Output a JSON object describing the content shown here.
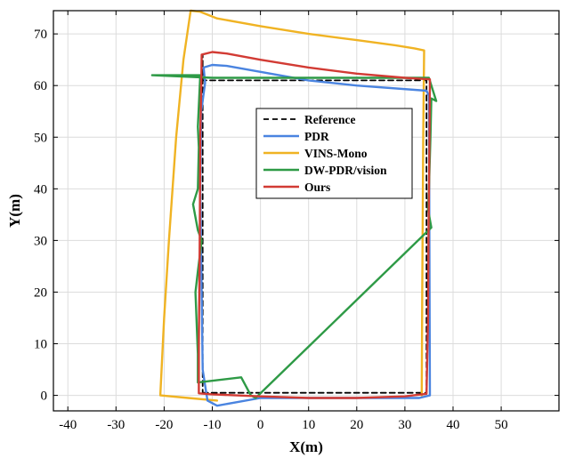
{
  "chart_data": {
    "type": "line",
    "xlabel": "X(m)",
    "ylabel": "Y(m)",
    "xlim": [
      -43,
      62
    ],
    "ylim": [
      -3,
      74.5
    ],
    "xticks": [
      -40,
      -30,
      -20,
      -10,
      0,
      10,
      20,
      30,
      40,
      50
    ],
    "yticks": [
      0,
      10,
      20,
      30,
      40,
      50,
      60,
      70
    ],
    "grid": true,
    "legend_position": "inside-center",
    "series": [
      {
        "name": "Reference",
        "color": "#000000",
        "dash": "dashed",
        "points": [
          [
            -12,
            0.5
          ],
          [
            34.5,
            0.5
          ],
          [
            34.5,
            61
          ],
          [
            -12,
            61
          ],
          [
            -12,
            66
          ],
          [
            -12,
            0.5
          ]
        ]
      },
      {
        "name": "PDR",
        "color": "#4a84e0",
        "dash": "solid",
        "points": [
          [
            -11.5,
            60.5
          ],
          [
            -11.8,
            63.5
          ],
          [
            -10,
            64
          ],
          [
            -7,
            63.8
          ],
          [
            10,
            61
          ],
          [
            20,
            60
          ],
          [
            34.5,
            59
          ],
          [
            35,
            58
          ],
          [
            35.2,
            0
          ],
          [
            33,
            -0.5
          ],
          [
            0,
            -0.5
          ],
          [
            -9,
            -2
          ],
          [
            -11,
            -1
          ],
          [
            -12,
            5
          ],
          [
            -12.5,
            40
          ],
          [
            -12.3,
            55
          ],
          [
            -11.5,
            60.5
          ]
        ]
      },
      {
        "name": "VINS-Mono",
        "color": "#f0b323",
        "dash": "solid",
        "points": [
          [
            -9,
            -1
          ],
          [
            -15,
            -0.5
          ],
          [
            -20.8,
            0
          ],
          [
            -20,
            15
          ],
          [
            -19,
            30
          ],
          [
            -17.5,
            50
          ],
          [
            -16,
            65
          ],
          [
            -14.5,
            74.5
          ],
          [
            -12.5,
            74.3
          ],
          [
            -9,
            73
          ],
          [
            0,
            71.5
          ],
          [
            10,
            70
          ],
          [
            20,
            68.8
          ],
          [
            28,
            67.8
          ],
          [
            32,
            67.2
          ],
          [
            34,
            66.8
          ],
          [
            33.8,
            50
          ],
          [
            33.6,
            20
          ],
          [
            33.5,
            0
          ]
        ]
      },
      {
        "name": "DW-PDR/vision",
        "color": "#2e9a46",
        "dash": "solid",
        "points": [
          [
            -22.5,
            62
          ],
          [
            -10,
            61.5
          ],
          [
            10,
            61.5
          ],
          [
            30,
            61.5
          ],
          [
            35,
            61.5
          ],
          [
            36.5,
            57
          ],
          [
            35.5,
            57.5
          ],
          [
            35.3,
            50
          ],
          [
            35,
            40
          ],
          [
            34.8,
            36
          ],
          [
            35.5,
            32.5
          ],
          [
            -1,
            -0.5
          ],
          [
            -2,
            0
          ],
          [
            -4,
            3.5
          ],
          [
            -13,
            2.5
          ],
          [
            -13,
            8
          ],
          [
            -13.5,
            20
          ],
          [
            -13,
            24
          ],
          [
            -12.2,
            30
          ],
          [
            -13,
            32
          ],
          [
            -14,
            37
          ],
          [
            -13,
            40
          ],
          [
            -12.8,
            48
          ],
          [
            -13,
            52
          ],
          [
            -12.5,
            62
          ],
          [
            -22.5,
            62
          ]
        ]
      },
      {
        "name": "Ours",
        "color": "#d23b34",
        "dash": "solid",
        "points": [
          [
            -12.2,
            66
          ],
          [
            -10,
            66.5
          ],
          [
            -7,
            66.2
          ],
          [
            0,
            65
          ],
          [
            10,
            63.5
          ],
          [
            20,
            62.3
          ],
          [
            30,
            61.5
          ],
          [
            35.2,
            61.2
          ],
          [
            35.1,
            50
          ],
          [
            34.9,
            30
          ],
          [
            34.8,
            15
          ],
          [
            34.5,
            0.3
          ],
          [
            30,
            -0.2
          ],
          [
            20,
            -0.5
          ],
          [
            10,
            -0.5
          ],
          [
            0,
            -0.2
          ],
          [
            -5,
            0
          ],
          [
            -10,
            0.2
          ],
          [
            -12.8,
            0.4
          ],
          [
            -12.8,
            10
          ],
          [
            -12.6,
            30
          ],
          [
            -12.5,
            50
          ],
          [
            -12.3,
            60
          ],
          [
            -12.2,
            66
          ]
        ]
      }
    ]
  }
}
